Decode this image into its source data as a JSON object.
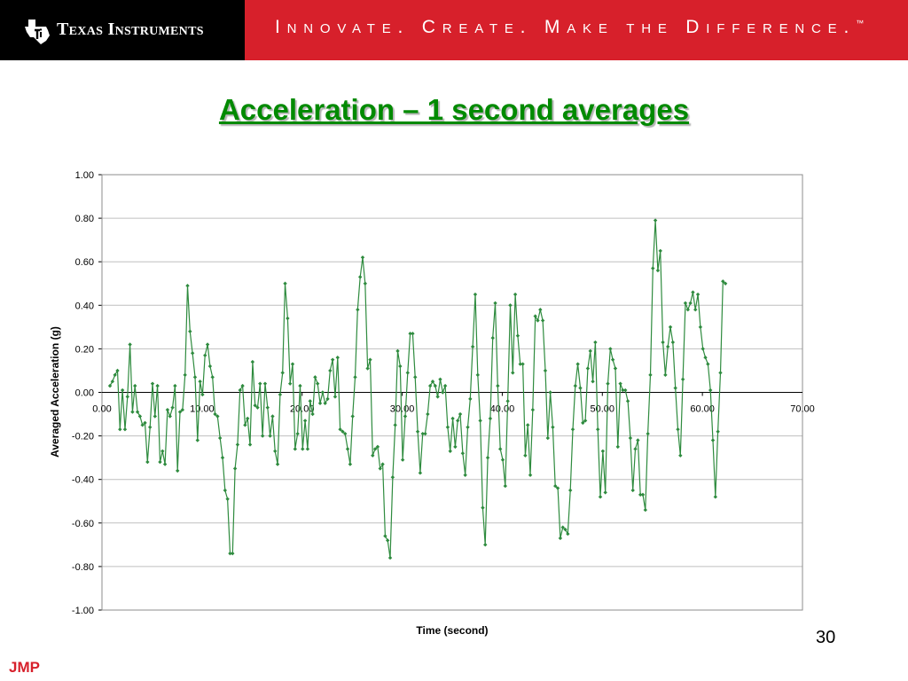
{
  "header": {
    "logo_text": "Texas Instruments",
    "tagline": "Innovate. Create. Make the Difference.",
    "tagline_mark": "™",
    "brand_red": "#d7202b",
    "logo_icon": "texas-state-icon"
  },
  "slide": {
    "title": "Acceleration – 1 second averages",
    "title_color": "#008a00",
    "number": "30",
    "footer": "JMP"
  },
  "chart_data": {
    "type": "line",
    "title": "",
    "xlabel": "Time (second)",
    "ylabel": "Averaged Acceleration (g)",
    "xlim": [
      0,
      70
    ],
    "ylim": [
      -1.0,
      1.0
    ],
    "x_ticks": [
      "0.00",
      "10.00",
      "20.00",
      "30.00",
      "40.00",
      "50.00",
      "60.00",
      "70.00"
    ],
    "y_ticks": [
      "1.00",
      "0.80",
      "0.60",
      "0.40",
      "0.20",
      "0.00",
      "-0.20",
      "-0.40",
      "-0.60",
      "-0.80",
      "-1.00"
    ],
    "grid": "horizontal",
    "legend": "none",
    "series": [
      {
        "color": "#2e8b3e",
        "marker": "diamond",
        "x_start": 0.8,
        "x_step": 0.25,
        "values": [
          0.03,
          0.05,
          0.08,
          0.1,
          -0.17,
          0.01,
          -0.17,
          -0.02,
          0.22,
          -0.09,
          0.03,
          -0.09,
          -0.11,
          -0.15,
          -0.14,
          -0.32,
          -0.16,
          0.04,
          -0.11,
          0.03,
          -0.32,
          -0.27,
          -0.33,
          -0.08,
          -0.11,
          -0.07,
          0.03,
          -0.36,
          -0.09,
          -0.08,
          0.08,
          0.49,
          0.28,
          0.18,
          0.07,
          -0.22,
          0.05,
          -0.01,
          0.17,
          0.22,
          0.12,
          0.07,
          -0.1,
          -0.11,
          -0.21,
          -0.3,
          -0.45,
          -0.49,
          -0.74,
          -0.74,
          -0.35,
          -0.24,
          0.01,
          0.03,
          -0.15,
          -0.12,
          -0.24,
          0.14,
          -0.06,
          -0.07,
          0.04,
          -0.2,
          0.04,
          -0.07,
          -0.2,
          -0.11,
          -0.27,
          -0.33,
          -0.01,
          0.09,
          0.5,
          0.34,
          0.04,
          0.13,
          -0.26,
          -0.19,
          0.03,
          -0.26,
          -0.13,
          -0.26,
          -0.04,
          -0.1,
          0.07,
          0.04,
          -0.05,
          0.0,
          -0.05,
          -0.03,
          0.1,
          0.15,
          -0.02,
          0.16,
          -0.17,
          -0.18,
          -0.19,
          -0.26,
          -0.33,
          -0.11,
          0.07,
          0.38,
          0.53,
          0.62,
          0.5,
          0.11,
          0.15,
          -0.29,
          -0.26,
          -0.25,
          -0.35,
          -0.33,
          -0.66,
          -0.68,
          -0.76,
          -0.39,
          -0.15,
          0.19,
          0.12,
          -0.31,
          -0.11,
          0.09,
          0.27,
          0.27,
          0.07,
          -0.18,
          -0.37,
          -0.19,
          -0.19,
          -0.1,
          0.03,
          0.05,
          0.03,
          -0.02,
          0.06,
          0.0,
          0.03,
          -0.16,
          -0.27,
          -0.12,
          -0.25,
          -0.13,
          -0.1,
          -0.28,
          -0.38,
          -0.16,
          -0.03,
          0.21,
          0.45,
          0.08,
          -0.13,
          -0.53,
          -0.7,
          -0.3,
          -0.12,
          0.25,
          0.41,
          0.03,
          -0.26,
          -0.31,
          -0.43,
          -0.04,
          0.4,
          0.09,
          0.45,
          0.26,
          0.13,
          0.13,
          -0.29,
          -0.15,
          -0.38,
          -0.08,
          0.35,
          0.33,
          0.38,
          0.33,
          0.1,
          -0.21,
          0.0,
          -0.16,
          -0.43,
          -0.44,
          -0.67,
          -0.62,
          -0.63,
          -0.65,
          -0.45,
          -0.17,
          0.03,
          0.13,
          0.02,
          -0.14,
          -0.13,
          0.11,
          0.19,
          0.05,
          0.23,
          -0.17,
          -0.48,
          -0.27,
          -0.46,
          0.04,
          0.2,
          0.15,
          0.11,
          -0.25,
          0.04,
          0.01,
          0.01,
          -0.04,
          -0.21,
          -0.45,
          -0.26,
          -0.22,
          -0.47,
          -0.47,
          -0.54,
          -0.19,
          0.08,
          0.57,
          0.79,
          0.56,
          0.65,
          0.23,
          0.08,
          0.21,
          0.3,
          0.23,
          0.02,
          -0.17,
          -0.29,
          0.06,
          0.41,
          0.38,
          0.41,
          0.46,
          0.38,
          0.45,
          0.3,
          0.2,
          0.16,
          0.13,
          0.01,
          -0.22,
          -0.48,
          -0.18,
          0.09,
          0.51,
          0.5
        ]
      }
    ]
  }
}
